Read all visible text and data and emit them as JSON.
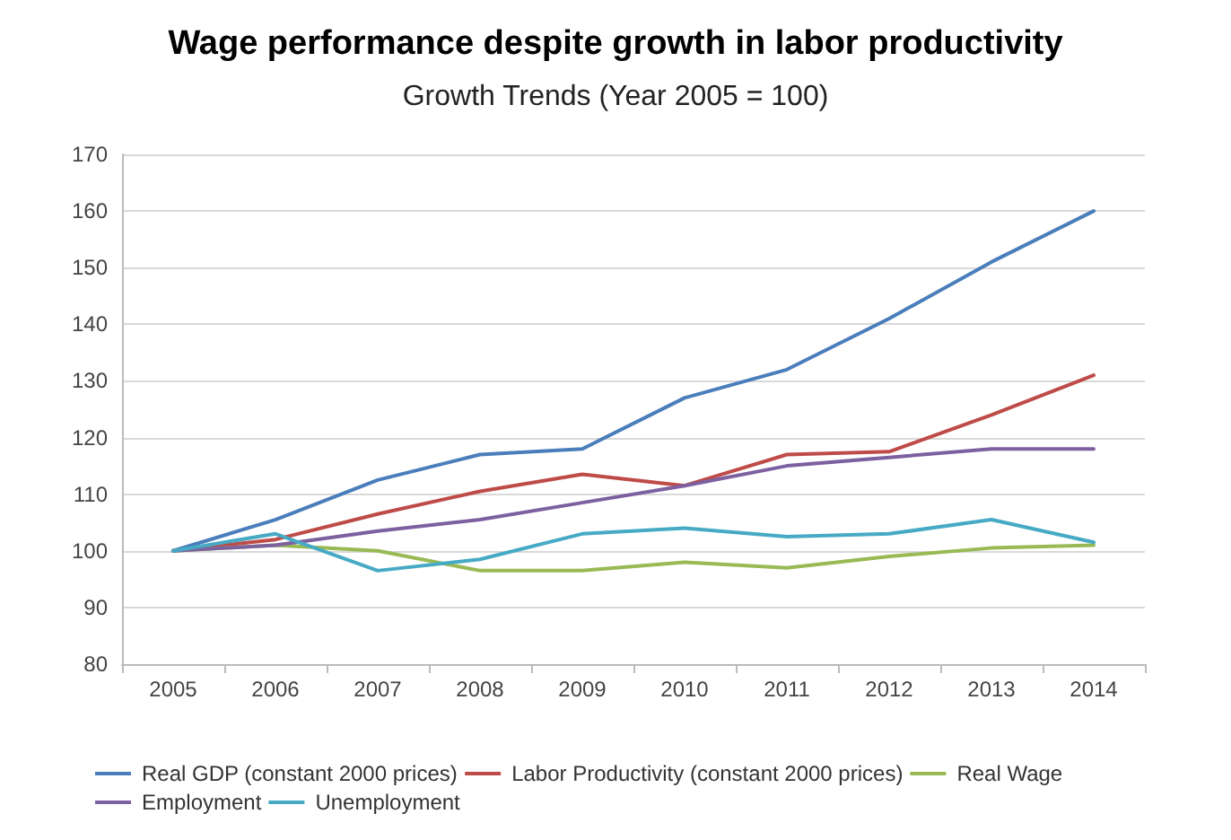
{
  "chart_data": {
    "type": "line",
    "title": "Wage performance despite growth in labor productivity",
    "subtitle": "Growth Trends (Year 2005 = 100)",
    "categories": [
      "2005",
      "2006",
      "2007",
      "2008",
      "2009",
      "2010",
      "2011",
      "2012",
      "2013",
      "2014"
    ],
    "series": [
      {
        "name": "Real GDP (constant 2000 prices)",
        "color": "#4a7ebb",
        "values": [
          100,
          105.5,
          112.5,
          117,
          118,
          127,
          132,
          141,
          151,
          160
        ]
      },
      {
        "name": "Labor Productivity (constant 2000 prices)",
        "color": "#be4b48",
        "values": [
          100,
          102,
          106.5,
          110.5,
          113.5,
          111.5,
          117,
          117.5,
          124,
          131
        ]
      },
      {
        "name": "Real Wage",
        "color": "#98b954",
        "values": [
          100,
          101,
          100,
          96.5,
          96.5,
          98,
          97,
          99,
          100.5,
          101
        ]
      },
      {
        "name": "Employment",
        "color": "#7d60a0",
        "values": [
          100,
          101,
          103.5,
          105.5,
          108.5,
          111.5,
          115,
          116.5,
          118,
          118
        ]
      },
      {
        "name": "Unemployment",
        "color": "#46aac5",
        "values": [
          100,
          103,
          96.5,
          98.5,
          103,
          104,
          102.5,
          103,
          105.5,
          101.5
        ]
      }
    ],
    "ylim": [
      80,
      170
    ],
    "yticks": [
      80,
      90,
      100,
      110,
      120,
      130,
      140,
      150,
      160,
      170
    ],
    "grid": "y",
    "legend": "bottom",
    "marker": "none",
    "line_style": "solid"
  }
}
